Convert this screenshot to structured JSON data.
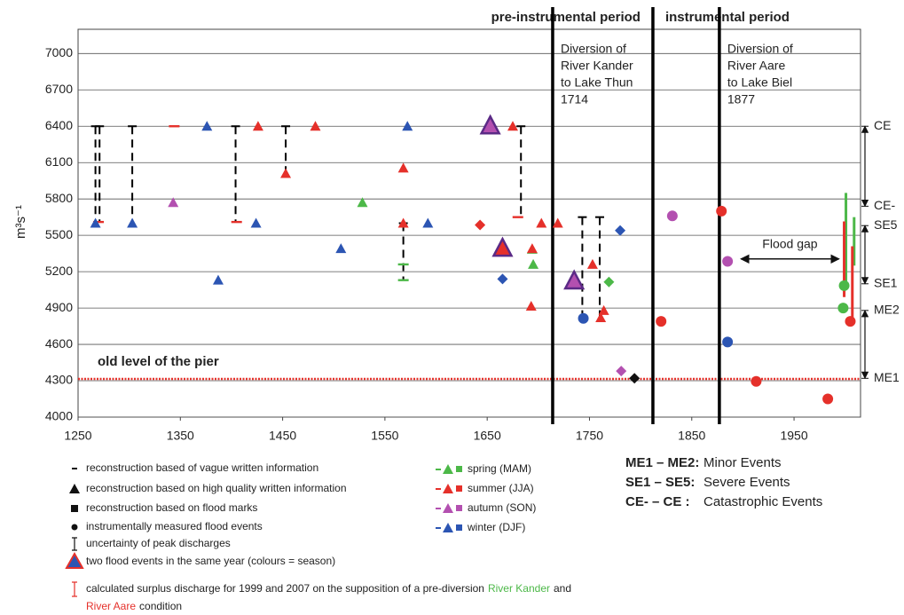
{
  "chart_data": {
    "type": "scatter",
    "y_label": "m³s⁻¹",
    "xlim": [
      1250,
      2015
    ],
    "xticks": [
      1250,
      1350,
      1450,
      1550,
      1650,
      1750,
      1850,
      1950
    ],
    "ylim": [
      4000,
      7200
    ],
    "yticks": [
      4000,
      4300,
      4600,
      4900,
      5200,
      5500,
      5800,
      6100,
      6400,
      6700,
      7000
    ],
    "grid": true,
    "series": [
      {
        "name": "spring (MAM)",
        "color": "#4cb848",
        "x": [
          1528,
          1694,
          1695,
          1769,
          1998,
          1999,
          1568,
          1568
        ],
        "values": [
          5770,
          5385,
          5260,
          5115,
          4900,
          5085,
          5260,
          5130
        ],
        "markers": [
          "triangle",
          "triangle",
          "triangle",
          "diamond",
          "circle",
          "circle",
          "dash",
          "dash"
        ]
      },
      {
        "name": "summer (JJA)",
        "color": "#e5302a",
        "x": [
          1344,
          1270,
          1405,
          1680,
          1426,
          1482,
          1675,
          1453,
          1568,
          1568,
          1703,
          1719,
          1694,
          1693,
          1753,
          1764,
          1761,
          1643,
          1820,
          1879,
          1913,
          1983,
          2005,
          1665
        ],
        "values": [
          6400,
          5610,
          5610,
          5650,
          6400,
          6400,
          6400,
          6010,
          6055,
          5600,
          5600,
          5600,
          5390,
          4915,
          5260,
          4880,
          4820,
          5585,
          4790,
          5700,
          4295,
          4150,
          4790,
          5390
        ],
        "markers": [
          "dash",
          "dash",
          "dash",
          "dash",
          "triangle",
          "triangle",
          "triangle",
          "triangle",
          "triangle",
          "triangle",
          "triangle",
          "triangle",
          "triangle",
          "triangle",
          "triangle",
          "triangle",
          "triangle",
          "diamond",
          "circle",
          "circle",
          "circle",
          "circle",
          "circle",
          "big-triangle"
        ]
      },
      {
        "name": "autumn (SON)",
        "color": "#b350b0",
        "x": [
          1343,
          1653,
          1781,
          1831,
          1885,
          1735
        ],
        "values": [
          5770,
          6400,
          4380,
          5660,
          5285,
          5120
        ],
        "markers": [
          "triangle",
          "big-triangle",
          "diamond",
          "circle",
          "circle",
          "big-triangle"
        ]
      },
      {
        "name": "winter (DJF)",
        "color": "#2c55b3",
        "x": [
          1267,
          1303,
          1376,
          1387,
          1424,
          1507,
          1572,
          1592,
          1665,
          1744,
          1780,
          1885
        ],
        "values": [
          5600,
          5600,
          6400,
          5130,
          5600,
          5390,
          6400,
          5600,
          5140,
          4815,
          5540,
          4620
        ],
        "markers": [
          "triangle",
          "triangle",
          "triangle",
          "triangle",
          "triangle",
          "triangle",
          "triangle",
          "triangle",
          "diamond",
          "circle",
          "diamond",
          "circle"
        ]
      },
      {
        "color": "#111111",
        "x": [
          1794
        ],
        "values": [
          4320
        ],
        "markers": [
          "diamond"
        ]
      }
    ],
    "uncertainty": [
      {
        "x": 1267,
        "low": 5600,
        "high": 6400
      },
      {
        "x": 1271,
        "low": 5610,
        "high": 6400
      },
      {
        "x": 1303,
        "low": 5600,
        "high": 6400
      },
      {
        "x": 1404,
        "low": 5610,
        "high": 6400
      },
      {
        "x": 1453,
        "low": 6010,
        "high": 6400
      },
      {
        "x": 1568,
        "low": 5130,
        "high": 5600
      },
      {
        "x": 1683,
        "low": 5650,
        "high": 6400
      },
      {
        "x": 1743,
        "low": 4815,
        "high": 5650
      },
      {
        "x": 1760,
        "low": 4820,
        "high": 5650
      }
    ],
    "surplus": [
      {
        "x": 1999,
        "low": 5100,
        "high": 5850,
        "color": "#4cb848"
      },
      {
        "x": 2007,
        "low": 5250,
        "high": 5650,
        "color": "#4cb848"
      },
      {
        "x": 1999,
        "low": 4990,
        "high": 5615,
        "color": "#e5302a"
      },
      {
        "x": 2007,
        "low": 4810,
        "high": 5410,
        "color": "#e5302a"
      }
    ],
    "pier": {
      "label": "old level of the pier",
      "value": 4315,
      "color": "#e5302a"
    },
    "periods": {
      "pre": "pre-instrumental period",
      "instrumental": "instrumental period",
      "boundary": 1812
    },
    "diversions": [
      {
        "x": 1714,
        "lines": [
          "Diversion of",
          "River Kander",
          "to Lake Thun",
          "1714"
        ]
      },
      {
        "x": 1877,
        "lines": [
          "Diversion of",
          "River Aare",
          "to Lake Biel",
          "1877"
        ]
      }
    ],
    "flood_gap": {
      "label": "Flood gap",
      "from": 1898,
      "to": 1994,
      "value": 5305
    },
    "class_scale": [
      {
        "label": "CE",
        "value": 6400
      },
      {
        "label": "CE-",
        "value": 5740
      },
      {
        "label": "SE5",
        "value": 5580
      },
      {
        "label": "SE1",
        "value": 5100
      },
      {
        "label": "ME2",
        "value": 4880
      },
      {
        "label": "ME1",
        "value": 4320
      }
    ],
    "legend_items": [
      "reconstruction based of vague written information",
      "reconstruction based on high quality written information",
      "reconstruction based on flood marks",
      "instrumentally measured flood events",
      "uncertainty of peak discharges",
      "two flood events in the same year (colours = season)"
    ],
    "legend_note": [
      "calculated surplus discharge for 1999 and 2007 on the supposition of a pre-diversion",
      "River Kander",
      "and",
      "River Aare",
      "condition"
    ],
    "class_legend": [
      {
        "code": "ME1 – ME2:",
        "text": "Minor Events"
      },
      {
        "code": "SE1 – SE5:",
        "text": "Severe Events"
      },
      {
        "code": "CE-  – CE :",
        "text": "Catastrophic Events"
      }
    ]
  }
}
